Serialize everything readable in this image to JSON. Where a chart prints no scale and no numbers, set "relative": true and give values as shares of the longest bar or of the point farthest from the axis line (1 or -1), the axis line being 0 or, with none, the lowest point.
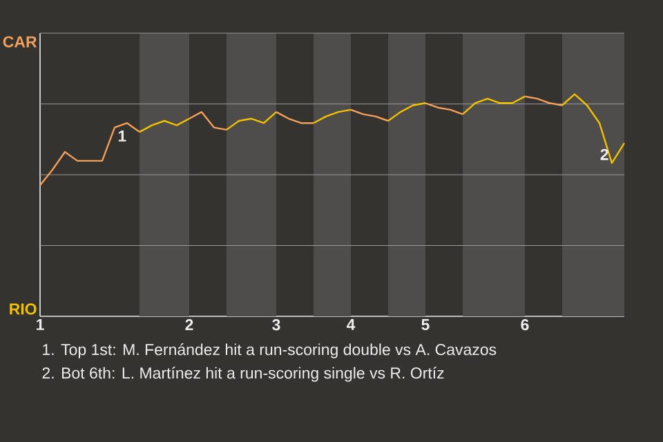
{
  "chart_data": {
    "type": "line",
    "relative": true,
    "categories": [
      "1",
      null,
      null,
      null,
      null,
      null,
      null,
      null,
      null,
      null,
      null,
      null,
      "2",
      null,
      null,
      null,
      null,
      null,
      null,
      "3",
      null,
      null,
      null,
      null,
      null,
      "4",
      null,
      null,
      null,
      null,
      null,
      "5",
      null,
      null,
      null,
      null,
      null,
      null,
      null,
      "6",
      null,
      null,
      null,
      null,
      null,
      null,
      null,
      null
    ],
    "grid": "y",
    "marker": "none",
    "line_style": "solid",
    "series": [
      {
        "name": "CAR",
        "color": "#f5a05a",
        "values": [
          0.59,
          0.66,
          0.74,
          0.7,
          0.7,
          0.7,
          0.85,
          0.87,
          0.83,
          null,
          null,
          null,
          0.89,
          0.92,
          0.85,
          0.84,
          null,
          null,
          null,
          0.92,
          0.89,
          0.87,
          0.87,
          null,
          null,
          0.93,
          0.91,
          0.9,
          0.88,
          null,
          null,
          0.96,
          0.94,
          0.93,
          0.91,
          null,
          null,
          null,
          null,
          0.99,
          0.98,
          0.96,
          0.95,
          null,
          null,
          null,
          null,
          null
        ]
      },
      {
        "name": "RIO",
        "color": "#f2c100",
        "values": [
          null,
          null,
          null,
          null,
          null,
          null,
          null,
          null,
          0.83,
          0.86,
          0.88,
          0.86,
          0.89,
          null,
          null,
          0.84,
          0.88,
          0.89,
          0.87,
          0.92,
          null,
          null,
          0.87,
          0.9,
          0.92,
          0.93,
          null,
          null,
          0.88,
          0.92,
          0.95,
          0.96,
          null,
          null,
          0.91,
          0.96,
          0.98,
          0.96,
          0.96,
          0.99,
          null,
          null,
          0.95,
          1.0,
          0.95,
          0.87,
          0.69,
          0.78
        ]
      }
    ],
    "annotations": [
      {
        "text": "1",
        "y": 0.85
      },
      {
        "text": "2",
        "y": 0.69
      },
      "1. Top 1st: M. Fernández hit a run-scoring double vs A. Cavazos",
      "2. Bot 6th: L. Martínez hit a run-scoring single vs R. Ortíz"
    ]
  }
}
